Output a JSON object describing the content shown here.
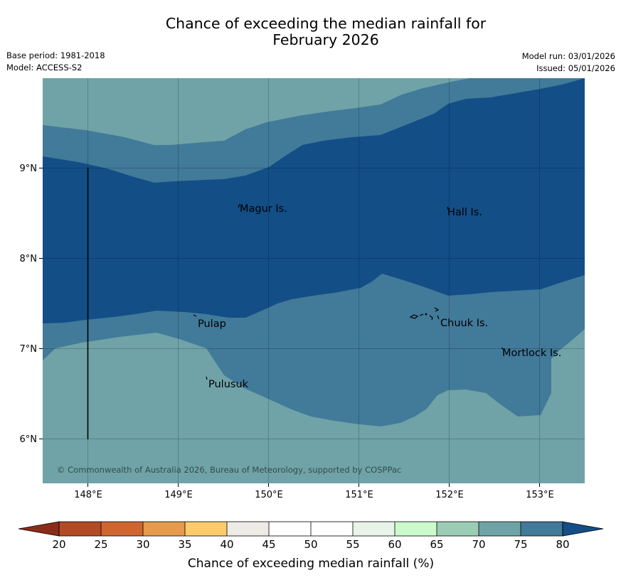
{
  "header": {
    "title_line1": "Chance of exceeding the median rainfall for",
    "title_line2": "February 2026",
    "base_period": "Base period: 1981-2018",
    "model": "Model: ACCESS-S2",
    "model_run": "Model run: 03/01/2026",
    "issued": "Issued: 05/01/2026"
  },
  "map": {
    "lon_ticks": [
      "148°E",
      "149°E",
      "150°E",
      "151°E",
      "152°E",
      "153°E"
    ],
    "lat_ticks": [
      "9°N",
      "8°N",
      "7°N",
      "6°N"
    ],
    "places": [
      "Magur Is.",
      "Hall Is.",
      "Pulap",
      "Chuuk Is.",
      "Mortlock Is.",
      "Pulusuk"
    ],
    "copyright": "© Commonwealth of Australia 2026, Bureau of Meteorology, supported by COSPPac",
    "regions": [
      {
        "category": "70-75%",
        "color": "#6fa3a7"
      },
      {
        "category": "75-80%",
        "color": "#427a99"
      },
      {
        "category": ">80%",
        "color": "#134e87"
      }
    ]
  },
  "colorbar": {
    "label": "Chance of exceeding median rainfall (%)",
    "ticks": [
      "20",
      "25",
      "30",
      "35",
      "40",
      "45",
      "50",
      "55",
      "60",
      "65",
      "70",
      "75",
      "80"
    ],
    "colors": [
      "#8a2d18",
      "#b34a26",
      "#d06530",
      "#e59a4c",
      "#fdcb6a",
      "#ecebe6",
      "#ffffff",
      "#ffffff",
      "#e9f4e8",
      "#cbfbcb",
      "#9bcdb5",
      "#6fa3a7",
      "#427a99",
      "#134e87"
    ]
  }
}
